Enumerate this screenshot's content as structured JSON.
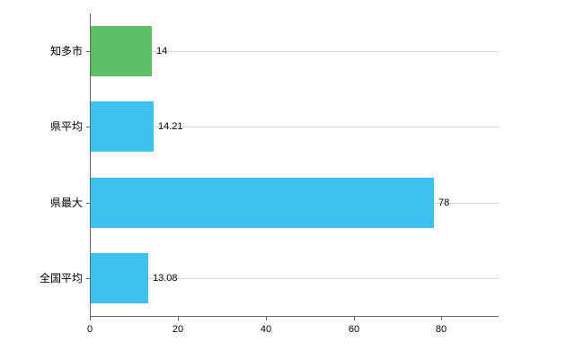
{
  "chart_data": {
    "type": "bar",
    "orientation": "horizontal",
    "title": "",
    "xlabel": "",
    "ylabel": "",
    "categories": [
      "知多市",
      "県平均",
      "県最大",
      "全国平均"
    ],
    "values": [
      14,
      14.21,
      78,
      13.08
    ],
    "value_labels": [
      "14",
      "14.21",
      "78",
      "13.08"
    ],
    "bar_colors": [
      "#5cbf66",
      "#3ec1f0",
      "#3ec1f0",
      "#3ec1f0"
    ],
    "xticks": [
      0,
      20,
      40,
      60,
      80
    ],
    "xtick_labels": [
      "0",
      "20",
      "40",
      "60",
      "80"
    ],
    "xlim": [
      0,
      93
    ],
    "grid": "horizontal",
    "legend": "none",
    "colors": {
      "axis": "#666666",
      "gridline": "#dddddd",
      "text": "#000000",
      "background": "#ffffff"
    }
  }
}
